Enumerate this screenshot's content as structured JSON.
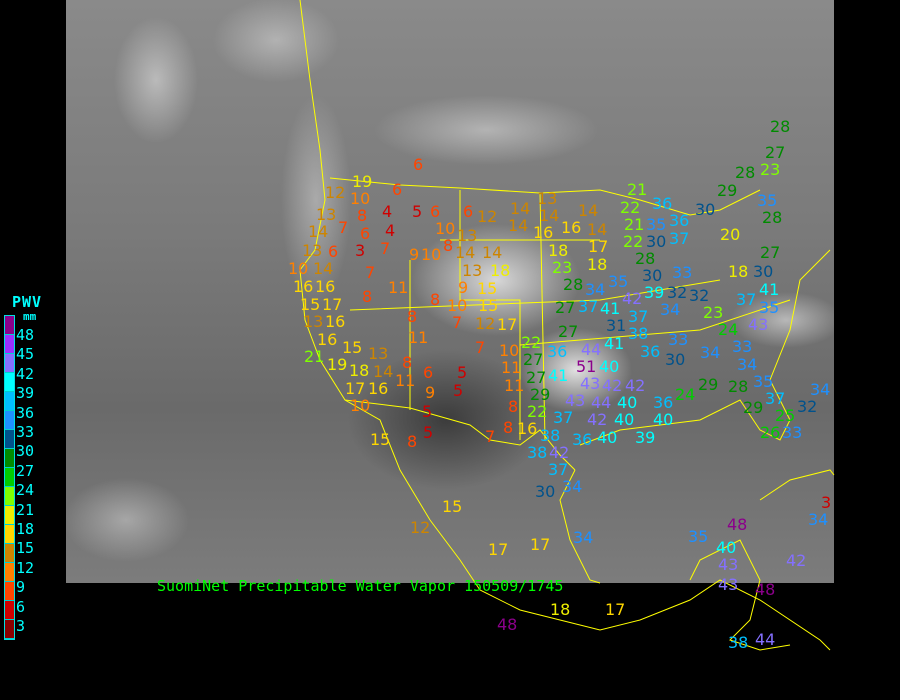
{
  "legend": {
    "title": "PWV",
    "unit": "mm",
    "labels": [
      "48",
      "45",
      "42",
      "39",
      "36",
      "33",
      "30",
      "27",
      "24",
      "21",
      "18",
      "15",
      "12",
      "9",
      "6",
      "3"
    ],
    "colors": [
      "#8b008b",
      "#9b30ff",
      "#8470ff",
      "#00ffff",
      "#00bfff",
      "#1e90ff",
      "#00528c",
      "#008b00",
      "#00cd00",
      "#7fff00",
      "#eeee00",
      "#ffd700",
      "#cd8500",
      "#ff8000",
      "#ff4500",
      "#d00000",
      "#8b0000"
    ]
  },
  "caption": "SuomiNet Precipitable Water Vapor 150509/1745",
  "border_color": "#ffff00",
  "stations": [
    6,
    19,
    12,
    10,
    6,
    4,
    5,
    6,
    6,
    12,
    14,
    13,
    7,
    8,
    6,
    3,
    4,
    7,
    14,
    10,
    8,
    13,
    9,
    10,
    14,
    14,
    13,
    6,
    10,
    14,
    7,
    13,
    18,
    9,
    15,
    16,
    16,
    11,
    8,
    8,
    15,
    17,
    10,
    15,
    13,
    16,
    8,
    7,
    12,
    17,
    16,
    11,
    7,
    21,
    15,
    13,
    8,
    10,
    22,
    19,
    14,
    6,
    5,
    11,
    18,
    11,
    27,
    17,
    16,
    9,
    5,
    11,
    10,
    5,
    8,
    29,
    8,
    16,
    22,
    15,
    8,
    5,
    7,
    38,
    28,
    27,
    23,
    28,
    29,
    13,
    14,
    14,
    16,
    14,
    16,
    18,
    14,
    17,
    18,
    23,
    21,
    22,
    21,
    36,
    35,
    36,
    37,
    22,
    30,
    28,
    30,
    33,
    30,
    35,
    28,
    20,
    18,
    30,
    27,
    28,
    34,
    35,
    37,
    41,
    42,
    37,
    39,
    32,
    32,
    34,
    27,
    31,
    38,
    27,
    41,
    36,
    44,
    36,
    33,
    30,
    34,
    33,
    37,
    41,
    35,
    43,
    23,
    24,
    51,
    40,
    41,
    27,
    42,
    42,
    43,
    40,
    44,
    43,
    36,
    24,
    29,
    34,
    35,
    28,
    37,
    37,
    42,
    40,
    40,
    29,
    25,
    32,
    34,
    26,
    33,
    40,
    39,
    36,
    38,
    42,
    37,
    34,
    30,
    15,
    12,
    17,
    34,
    17,
    18,
    17,
    48,
    35,
    48,
    40,
    42,
    43,
    43,
    48,
    38,
    44,
    34,
    3
  ]
}
